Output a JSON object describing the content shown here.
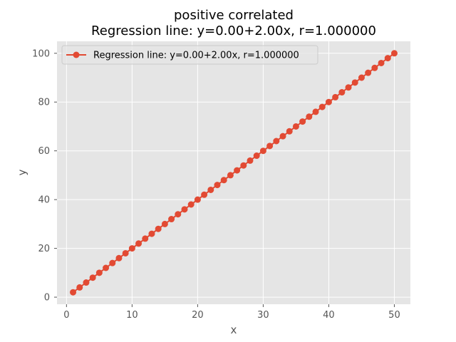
{
  "chart_data": {
    "type": "line",
    "title": [
      "positive correlated",
      "Regression line: y=0.00+2.00x, r=1.000000"
    ],
    "xlabel": "x",
    "ylabel": "y",
    "xlim": [
      -1.45,
      52.45
    ],
    "ylim": [
      -2.9,
      104.9
    ],
    "xticks": [
      0,
      10,
      20,
      30,
      40,
      50
    ],
    "yticks": [
      0,
      20,
      40,
      60,
      80,
      100
    ],
    "grid": true,
    "legend_position": "top-left",
    "colors": {
      "series": "#e24a33",
      "plot_bg": "#e5e5e5",
      "grid": "#ffffff",
      "text": "#555555"
    },
    "series": [
      {
        "name": "Regression line: y=0.00+2.00x, r=1.000000",
        "marker": "circle",
        "x": [
          1,
          2,
          3,
          4,
          5,
          6,
          7,
          8,
          9,
          10,
          11,
          12,
          13,
          14,
          15,
          16,
          17,
          18,
          19,
          20,
          21,
          22,
          23,
          24,
          25,
          26,
          27,
          28,
          29,
          30,
          31,
          32,
          33,
          34,
          35,
          36,
          37,
          38,
          39,
          40,
          41,
          42,
          43,
          44,
          45,
          46,
          47,
          48,
          49,
          50
        ],
        "y": [
          2,
          4,
          6,
          8,
          10,
          12,
          14,
          16,
          18,
          20,
          22,
          24,
          26,
          28,
          30,
          32,
          34,
          36,
          38,
          40,
          42,
          44,
          46,
          48,
          50,
          52,
          54,
          56,
          58,
          60,
          62,
          64,
          66,
          68,
          70,
          72,
          74,
          76,
          78,
          80,
          82,
          84,
          86,
          88,
          90,
          92,
          94,
          96,
          98,
          100
        ]
      }
    ]
  }
}
